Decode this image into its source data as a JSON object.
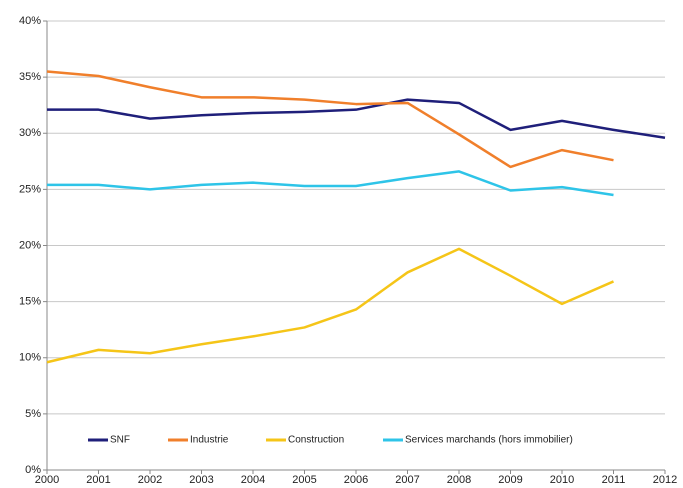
{
  "chart_data": {
    "type": "line",
    "x": [
      2000,
      2001,
      2002,
      2003,
      2004,
      2005,
      2006,
      2007,
      2008,
      2009,
      2010,
      2011,
      2012
    ],
    "xlim": [
      2000,
      2012
    ],
    "series": [
      {
        "name": "SNF",
        "color": "#1f1f7a",
        "values": [
          32.1,
          32.1,
          31.3,
          31.6,
          31.8,
          31.9,
          32.1,
          33.0,
          32.7,
          30.3,
          31.1,
          30.3,
          29.6
        ]
      },
      {
        "name": "Industrie",
        "color": "#f07f2b",
        "values": [
          35.5,
          35.1,
          34.1,
          33.2,
          33.2,
          33.0,
          32.6,
          32.7,
          29.9,
          27.0,
          28.5,
          27.6,
          null
        ]
      },
      {
        "name": "Construction",
        "color": "#f5c518",
        "values": [
          9.6,
          10.7,
          10.4,
          11.2,
          11.9,
          12.7,
          14.3,
          17.6,
          19.7,
          17.3,
          14.8,
          16.8,
          null
        ]
      },
      {
        "name": "Services marchands (hors immobilier)",
        "color": "#2ec4e8",
        "values": [
          25.4,
          25.4,
          25.0,
          25.4,
          25.6,
          25.3,
          25.3,
          26.0,
          26.6,
          24.9,
          25.2,
          24.5,
          null
        ]
      }
    ],
    "ylim": [
      0,
      40
    ],
    "yticks": [
      {
        "value": 0,
        "label": "0%"
      },
      {
        "value": 5,
        "label": "5%"
      },
      {
        "value": 10,
        "label": "10%"
      },
      {
        "value": 15,
        "label": "15%"
      },
      {
        "value": 20,
        "label": "20%"
      },
      {
        "value": 25,
        "label": "25%"
      },
      {
        "value": 30,
        "label": "30%"
      },
      {
        "value": 35,
        "label": "35%"
      },
      {
        "value": 40,
        "label": "40%"
      }
    ],
    "grid": true,
    "legend": "bottom"
  }
}
